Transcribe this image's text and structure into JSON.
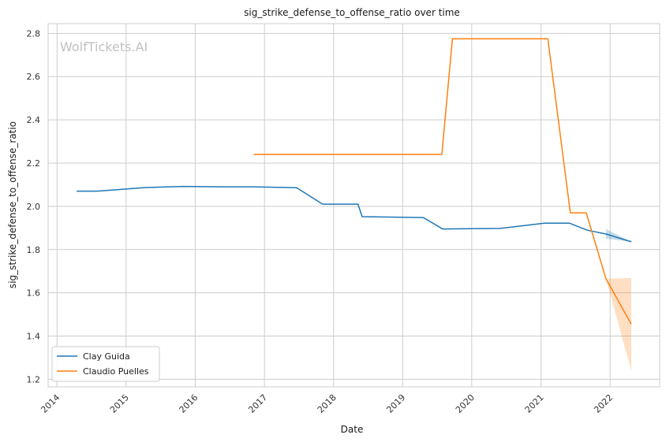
{
  "chart_data": {
    "type": "line",
    "title": "sig_strike_defense_to_offense_ratio over time",
    "xlabel": "Date",
    "ylabel": "sig_strike_defense_to_offense_ratio",
    "watermark": "WolfTickets.AI",
    "xlim": [
      "2013-11-15",
      "2022-09-20"
    ],
    "ylim": [
      1.165,
      2.845
    ],
    "x_ticks": [
      "2014",
      "2015",
      "2016",
      "2017",
      "2018",
      "2019",
      "2020",
      "2021",
      "2022"
    ],
    "y_ticks": [
      1.2,
      1.4,
      1.6,
      1.8,
      2.0,
      2.2,
      2.4,
      2.6,
      2.8
    ],
    "grid": true,
    "legend_position": "lower-left",
    "series": [
      {
        "name": "Clay Guida",
        "color": "#1f77b4",
        "points": [
          [
            "2014-04-15",
            2.07
          ],
          [
            "2014-08-01",
            2.07
          ],
          [
            "2015-01-01",
            2.08
          ],
          [
            "2015-04-15",
            2.087
          ],
          [
            "2015-11-01",
            2.092
          ],
          [
            "2016-06-01",
            2.09
          ],
          [
            "2016-11-01",
            2.09
          ],
          [
            "2017-06-20",
            2.086
          ],
          [
            "2017-11-04",
            2.01
          ],
          [
            "2018-05-10",
            2.01
          ],
          [
            "2018-06-01",
            1.952
          ],
          [
            "2019-04-20",
            1.948
          ],
          [
            "2019-08-01",
            1.895
          ],
          [
            "2020-06-01",
            1.898
          ],
          [
            "2021-01-20",
            1.922
          ],
          [
            "2021-06-01",
            1.922
          ],
          [
            "2021-09-01",
            1.89
          ],
          [
            "2021-12-10",
            1.872
          ],
          [
            "2022-04-23",
            1.836
          ]
        ],
        "band": [
          [
            "2021-12-10",
            1.85,
            1.895
          ],
          [
            "2022-04-23",
            1.836,
            1.836
          ]
        ]
      },
      {
        "name": "Claudio Puelles",
        "color": "#ff7f0e",
        "points": [
          [
            "2016-11-05",
            2.24
          ],
          [
            "2019-07-27",
            2.24
          ],
          [
            "2019-09-21",
            2.775
          ],
          [
            "2021-02-06",
            2.775
          ],
          [
            "2021-06-05",
            1.97
          ],
          [
            "2021-08-28",
            1.97
          ],
          [
            "2021-12-10",
            1.665
          ],
          [
            "2022-04-23",
            1.455
          ]
        ],
        "band": [
          [
            "2021-12-10",
            1.665,
            1.665
          ],
          [
            "2022-04-23",
            1.24,
            1.668
          ]
        ]
      }
    ]
  }
}
